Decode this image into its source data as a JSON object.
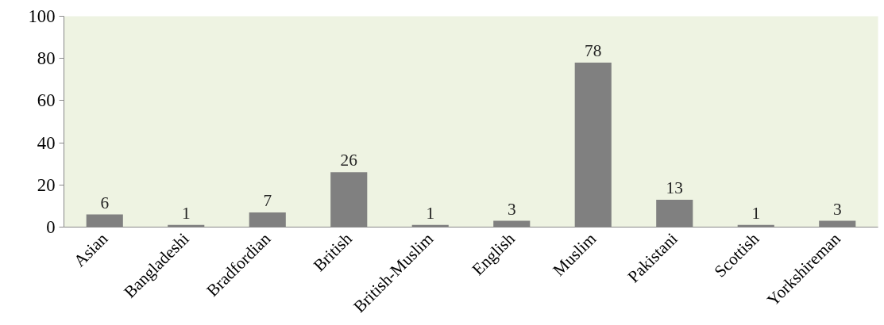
{
  "chart_data": {
    "type": "bar",
    "categories": [
      "Asian",
      "Bangladeshi",
      "Bradfordian",
      "British",
      "British-Muslim",
      "English",
      "Muslim",
      "Pakistani",
      "Scottish",
      "Yorkshireman"
    ],
    "values": [
      6,
      1,
      7,
      26,
      1,
      3,
      78,
      13,
      1,
      3
    ],
    "color": "#808080",
    "ylim": [
      0,
      100
    ],
    "yticks": [
      0,
      20,
      40,
      60,
      80,
      100
    ],
    "grid": false,
    "data_labels": true
  }
}
